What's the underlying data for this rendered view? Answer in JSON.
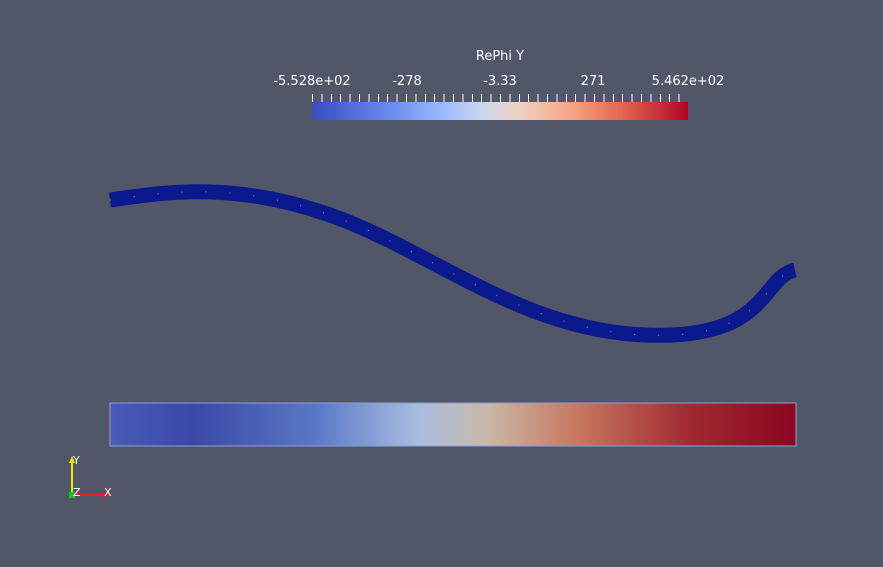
{
  "legend": {
    "title": "RePhi Y",
    "ticks": [
      "-5.528e+02",
      "-278",
      "-3.33",
      "271",
      "5.462e+02"
    ]
  },
  "axes": {
    "x_label": "X",
    "y_label": "Y",
    "z_label": "Z"
  },
  "colors": {
    "background": "#525669",
    "curve": "#0a1a8c",
    "colormap_low": "#3b4cc0",
    "colormap_mid": "#c8c8c8",
    "colormap_high": "#b40426"
  }
}
